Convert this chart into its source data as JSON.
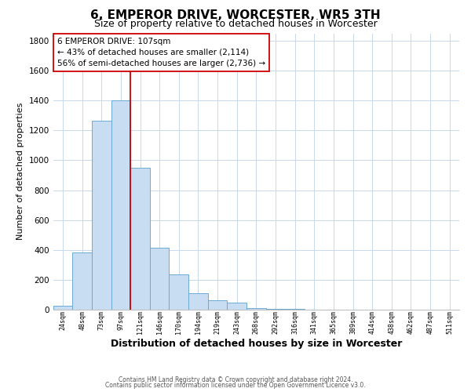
{
  "title": "6, EMPEROR DRIVE, WORCESTER, WR5 3TH",
  "subtitle": "Size of property relative to detached houses in Worcester",
  "xlabel": "Distribution of detached houses by size in Worcester",
  "ylabel": "Number of detached properties",
  "bar_labels": [
    "24sqm",
    "48sqm",
    "73sqm",
    "97sqm",
    "121sqm",
    "146sqm",
    "170sqm",
    "194sqm",
    "219sqm",
    "243sqm",
    "268sqm",
    "292sqm",
    "316sqm",
    "341sqm",
    "365sqm",
    "389sqm",
    "414sqm",
    "438sqm",
    "462sqm",
    "487sqm",
    "511sqm"
  ],
  "bar_values": [
    25,
    385,
    1265,
    1400,
    950,
    415,
    235,
    110,
    65,
    50,
    10,
    5,
    5,
    0,
    0,
    0,
    0,
    0,
    0,
    0,
    0
  ],
  "bar_color": "#c9ddf2",
  "bar_edge_color": "#6aaad4",
  "property_line_color": "#cc0000",
  "annotation_title": "6 EMPEROR DRIVE: 107sqm",
  "annotation_line1": "← 43% of detached houses are smaller (2,114)",
  "annotation_line2": "56% of semi-detached houses are larger (2,736) →",
  "annotation_box_color": "#ffffff",
  "annotation_box_edge": "#cc0000",
  "ylim": [
    0,
    1850
  ],
  "yticks": [
    0,
    200,
    400,
    600,
    800,
    1000,
    1200,
    1400,
    1600,
    1800
  ],
  "footer1": "Contains HM Land Registry data © Crown copyright and database right 2024.",
  "footer2": "Contains public sector information licensed under the Open Government Licence v3.0.",
  "background_color": "#ffffff",
  "grid_color": "#c8d8ec",
  "title_fontsize": 11,
  "subtitle_fontsize": 9,
  "xlabel_fontsize": 9,
  "ylabel_fontsize": 8
}
